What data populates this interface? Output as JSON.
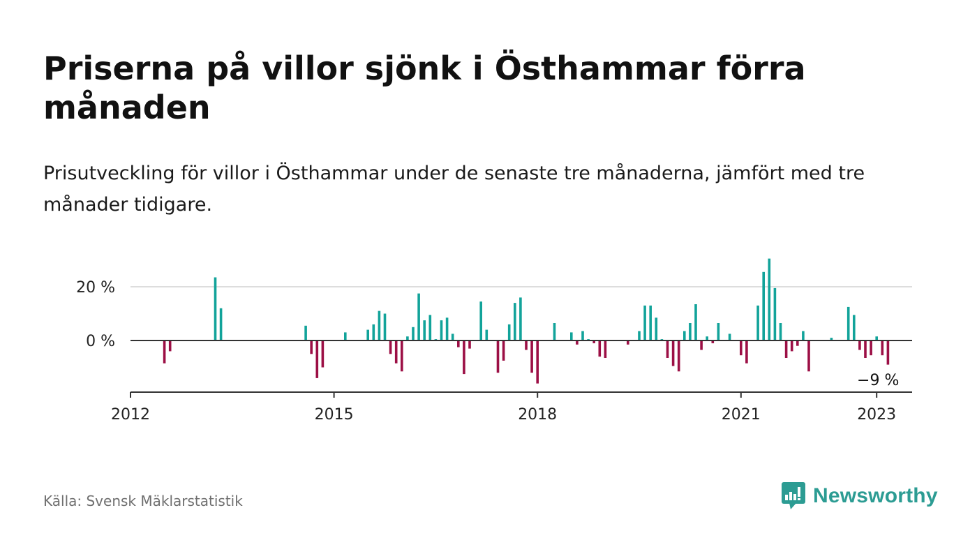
{
  "title": "Priserna på villor sjönk i Östhammar förra månaden",
  "subtitle": "Prisutveckling för villor i Östhammar under de senaste tre månaderna, jämfört med tre månader tidigare.",
  "source": "Källa: Svensk Mäklarstatistik",
  "brand": {
    "name": "Newsworthy",
    "color": "#2c9c93"
  },
  "colors": {
    "positive": "#12a39a",
    "negative": "#9c0f45",
    "grid": "#dddddd",
    "axis": "#333333"
  },
  "chart_data": {
    "type": "bar",
    "x_start": "2012-01",
    "x_end": "2023-07",
    "ylim": [
      -19,
      34
    ],
    "y_ticks": [
      {
        "value": 0,
        "label": "0 %"
      },
      {
        "value": 20,
        "label": "20 %"
      }
    ],
    "x_ticks": [
      {
        "date": "2012-01",
        "label": "2012"
      },
      {
        "date": "2015-01",
        "label": "2015"
      },
      {
        "date": "2018-01",
        "label": "2018"
      },
      {
        "date": "2021-01",
        "label": "2021"
      },
      {
        "date": "2023-01",
        "label": "2023"
      }
    ],
    "annotation": {
      "date": "2023-01",
      "value": -9,
      "label": "−9 %"
    },
    "grid": true,
    "series": [
      {
        "values": [
          {
            "x": "2012-07",
            "y": -8.5
          },
          {
            "x": "2012-08",
            "y": -4.0
          },
          {
            "x": "2013-04",
            "y": 23.5
          },
          {
            "x": "2013-05",
            "y": 12.0
          },
          {
            "x": "2014-08",
            "y": 5.5
          },
          {
            "x": "2014-09",
            "y": -5.0
          },
          {
            "x": "2014-10",
            "y": -14.0
          },
          {
            "x": "2014-11",
            "y": -10.0
          },
          {
            "x": "2015-03",
            "y": 3.0
          },
          {
            "x": "2015-07",
            "y": 4.0
          },
          {
            "x": "2015-08",
            "y": 6.0
          },
          {
            "x": "2015-09",
            "y": 11.0
          },
          {
            "x": "2015-10",
            "y": 10.0
          },
          {
            "x": "2015-11",
            "y": -5.0
          },
          {
            "x": "2015-12",
            "y": -8.5
          },
          {
            "x": "2016-01",
            "y": -11.5
          },
          {
            "x": "2016-02",
            "y": 1.5
          },
          {
            "x": "2016-03",
            "y": 5.0
          },
          {
            "x": "2016-04",
            "y": 17.5
          },
          {
            "x": "2016-05",
            "y": 7.5
          },
          {
            "x": "2016-06",
            "y": 9.5
          },
          {
            "x": "2016-07",
            "y": 0.5
          },
          {
            "x": "2016-08",
            "y": 7.5
          },
          {
            "x": "2016-09",
            "y": 8.5
          },
          {
            "x": "2016-10",
            "y": 2.5
          },
          {
            "x": "2016-11",
            "y": -2.5
          },
          {
            "x": "2016-12",
            "y": -12.5
          },
          {
            "x": "2017-01",
            "y": -3.0
          },
          {
            "x": "2017-03",
            "y": 14.5
          },
          {
            "x": "2017-04",
            "y": 4.0
          },
          {
            "x": "2017-06",
            "y": -12.0
          },
          {
            "x": "2017-07",
            "y": -7.5
          },
          {
            "x": "2017-08",
            "y": 6.0
          },
          {
            "x": "2017-09",
            "y": 14.0
          },
          {
            "x": "2017-10",
            "y": 16.0
          },
          {
            "x": "2017-11",
            "y": -3.5
          },
          {
            "x": "2017-12",
            "y": -12.0
          },
          {
            "x": "2018-01",
            "y": -16.0
          },
          {
            "x": "2018-04",
            "y": 6.5
          },
          {
            "x": "2018-07",
            "y": 3.0
          },
          {
            "x": "2018-08",
            "y": -1.5
          },
          {
            "x": "2018-09",
            "y": 3.5
          },
          {
            "x": "2018-10",
            "y": 0.5
          },
          {
            "x": "2018-11",
            "y": -1.0
          },
          {
            "x": "2018-12",
            "y": -6.0
          },
          {
            "x": "2019-01",
            "y": -6.5
          },
          {
            "x": "2019-05",
            "y": -1.5
          },
          {
            "x": "2019-07",
            "y": 3.5
          },
          {
            "x": "2019-08",
            "y": 13.0
          },
          {
            "x": "2019-09",
            "y": 13.0
          },
          {
            "x": "2019-10",
            "y": 8.5
          },
          {
            "x": "2019-11",
            "y": 0.5
          },
          {
            "x": "2019-12",
            "y": -6.5
          },
          {
            "x": "2020-01",
            "y": -9.5
          },
          {
            "x": "2020-02",
            "y": -11.5
          },
          {
            "x": "2020-03",
            "y": 3.5
          },
          {
            "x": "2020-04",
            "y": 6.5
          },
          {
            "x": "2020-05",
            "y": 13.5
          },
          {
            "x": "2020-06",
            "y": -3.5
          },
          {
            "x": "2020-07",
            "y": 1.5
          },
          {
            "x": "2020-08",
            "y": -1.0
          },
          {
            "x": "2020-09",
            "y": 6.5
          },
          {
            "x": "2020-11",
            "y": 2.5
          },
          {
            "x": "2021-01",
            "y": -5.5
          },
          {
            "x": "2021-02",
            "y": -8.5
          },
          {
            "x": "2021-04",
            "y": 13.0
          },
          {
            "x": "2021-05",
            "y": 25.5
          },
          {
            "x": "2021-06",
            "y": 30.5
          },
          {
            "x": "2021-07",
            "y": 19.5
          },
          {
            "x": "2021-08",
            "y": 6.5
          },
          {
            "x": "2021-09",
            "y": -6.5
          },
          {
            "x": "2021-10",
            "y": -4.0
          },
          {
            "x": "2021-11",
            "y": -2.0
          },
          {
            "x": "2021-12",
            "y": 3.5
          },
          {
            "x": "2022-01",
            "y": -11.5
          },
          {
            "x": "2022-05",
            "y": 1.0
          },
          {
            "x": "2022-08",
            "y": 12.5
          },
          {
            "x": "2022-09",
            "y": 9.5
          },
          {
            "x": "2022-10",
            "y": -3.5
          },
          {
            "x": "2022-11",
            "y": -6.5
          },
          {
            "x": "2022-12",
            "y": -5.5
          },
          {
            "x": "2023-01",
            "y": 1.5
          },
          {
            "x": "2023-02",
            "y": -5.5
          },
          {
            "x": "2023-03",
            "y": -9.0
          }
        ]
      }
    ]
  }
}
